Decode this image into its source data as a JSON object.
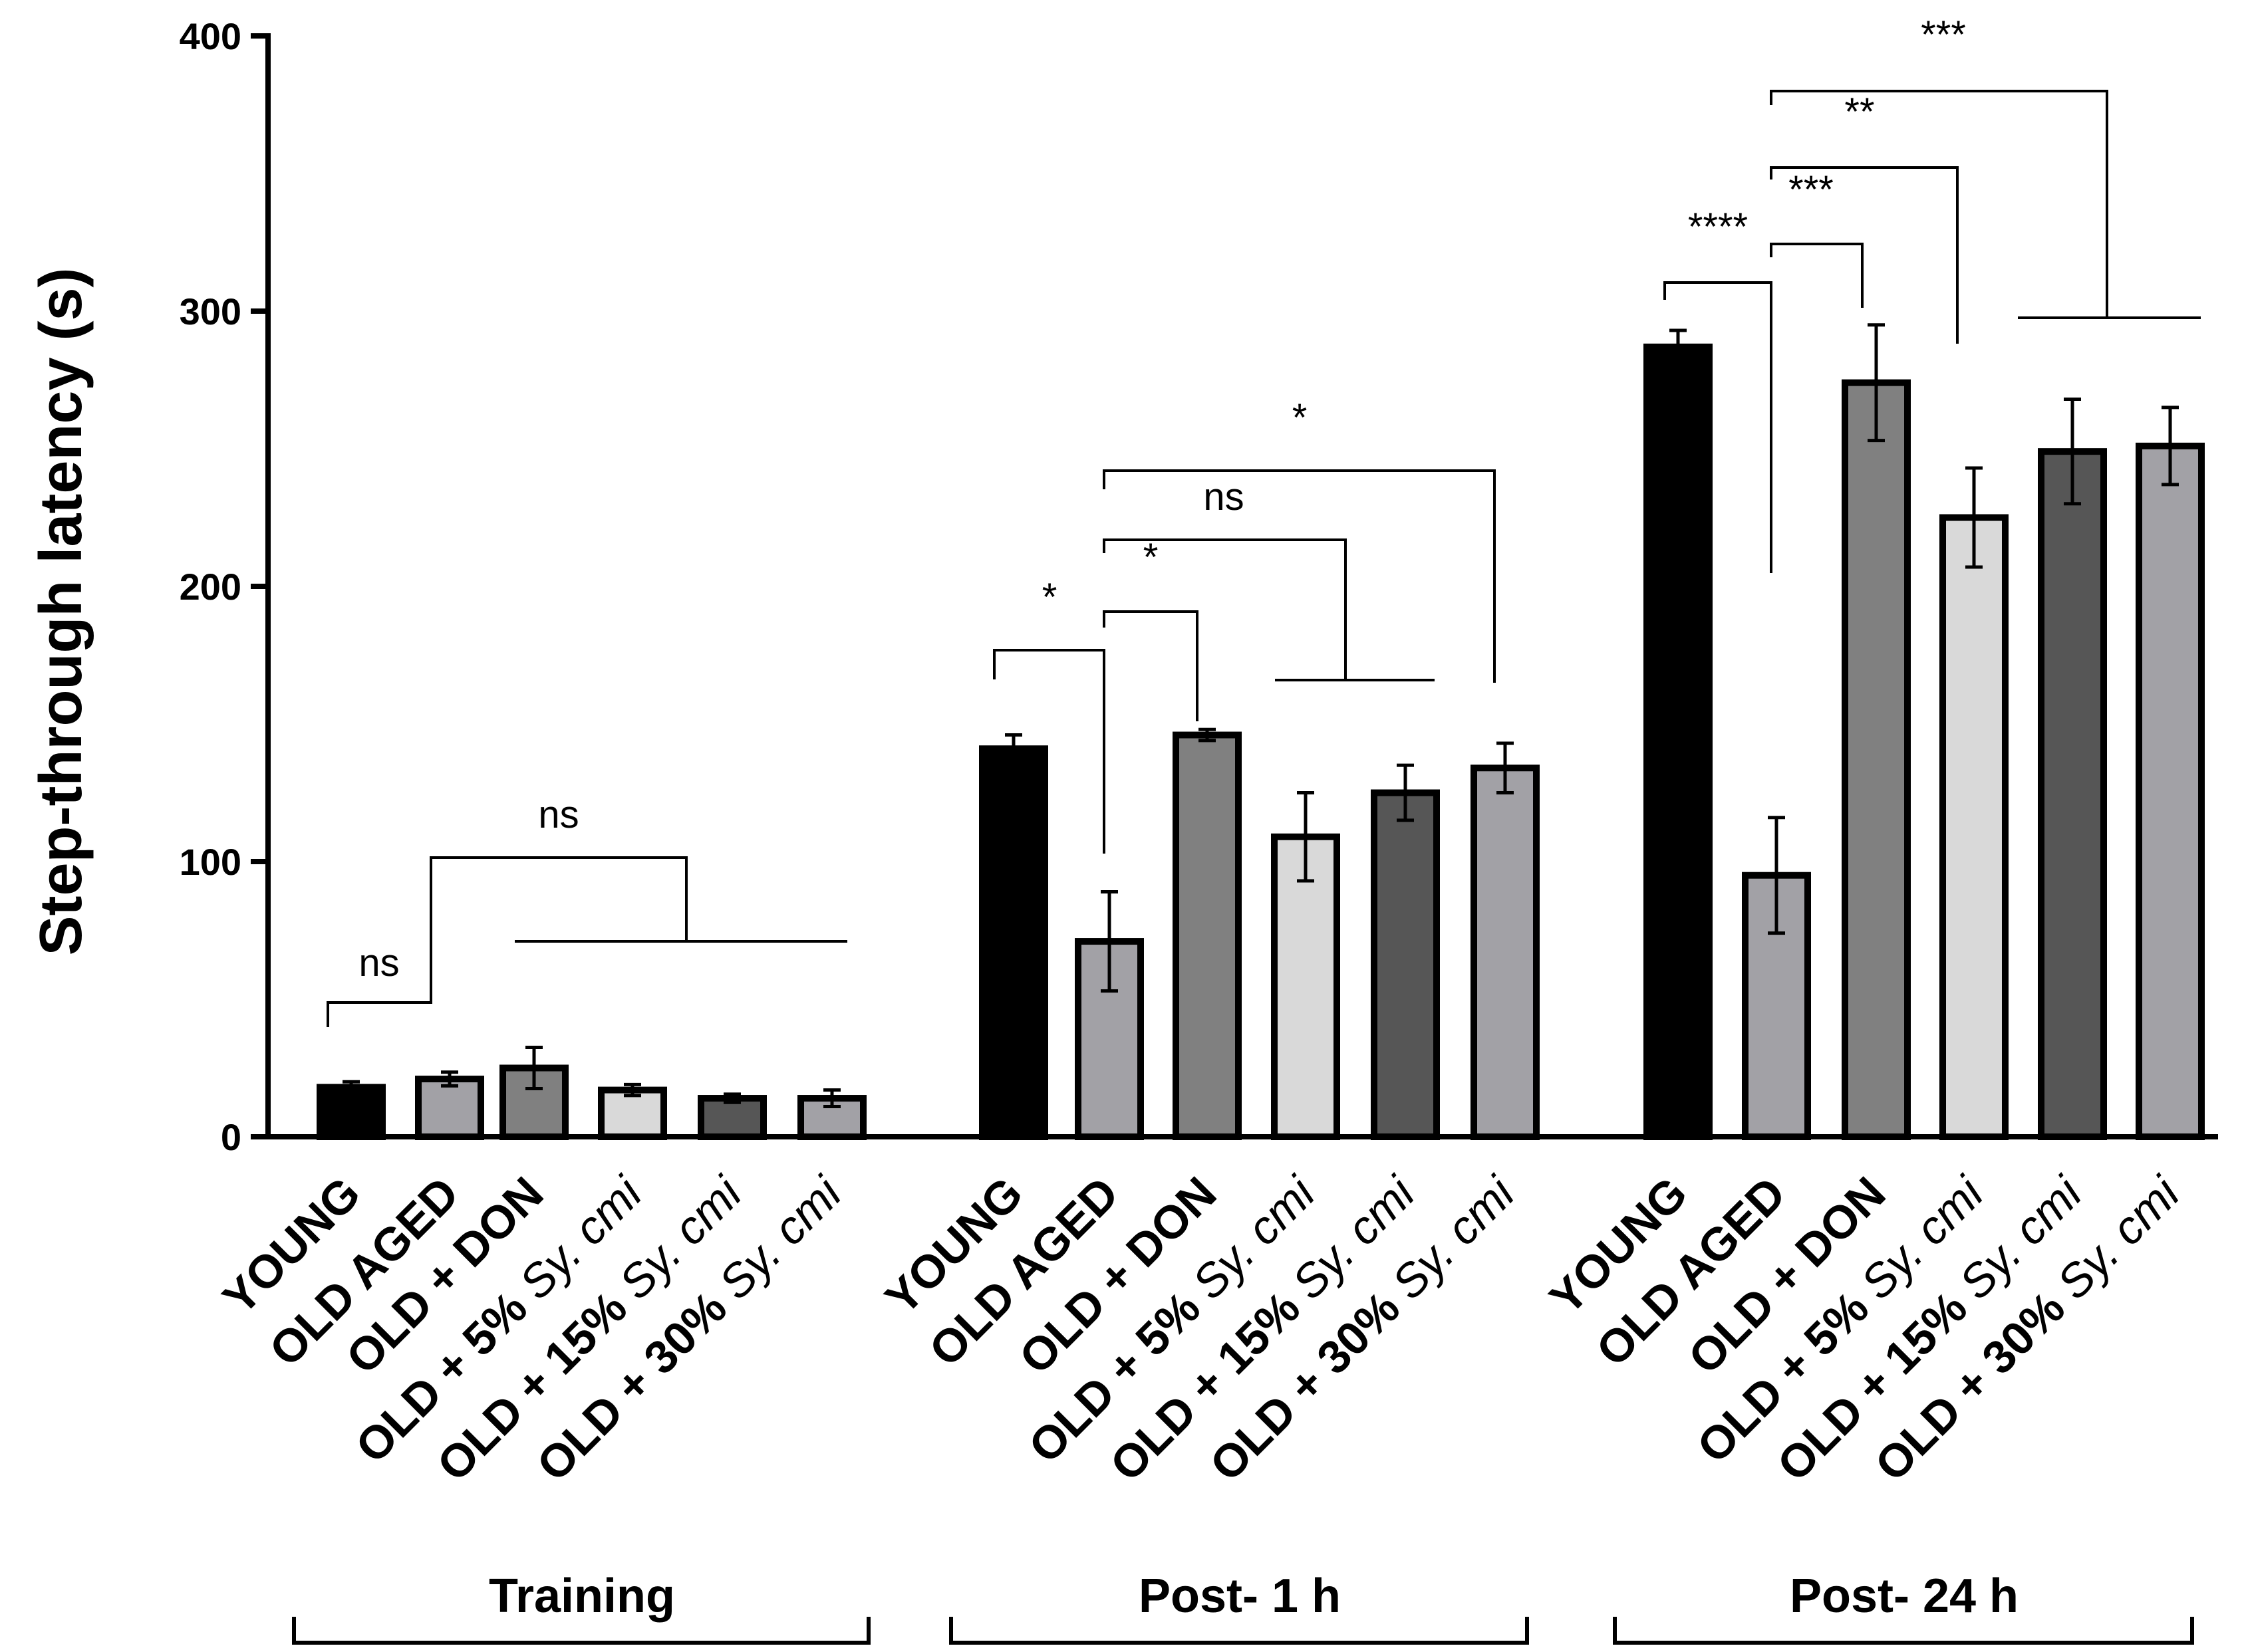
{
  "chart_data": {
    "type": "bar",
    "title": "",
    "ylabel": "Step-through latency (s)",
    "xlabel": "",
    "ylim": [
      0,
      400
    ],
    "yticks": [
      0,
      100,
      200,
      300,
      400
    ],
    "groups": [
      {
        "name": "Training",
        "bars": [
          {
            "label": "YOUNG",
            "value": 18,
            "err": 2,
            "color": "#000000"
          },
          {
            "label": "OLD AGED",
            "value": 21,
            "err": 2.5,
            "color": "#a2a1a6"
          },
          {
            "label": "OLD + DON",
            "value": 25,
            "err": 7.5,
            "color": "#808080"
          },
          {
            "label": "OLD + 5% Sy. cmi",
            "value": 17,
            "err": 2,
            "color": "#d9d9d9"
          },
          {
            "label": "OLD + 15% Sy. cmi",
            "value": 14,
            "err": 1.5,
            "color": "#565656"
          },
          {
            "label": "OLD + 30% Sy. cmi",
            "value": 14,
            "err": 3,
            "color": "#a2a1a6"
          }
        ],
        "significance": [
          {
            "text": "ns"
          },
          {
            "text": "ns"
          }
        ]
      },
      {
        "name": "Post- 1 h",
        "bars": [
          {
            "label": "YOUNG",
            "value": 141,
            "err": 5,
            "color": "#000000"
          },
          {
            "label": "OLD AGED",
            "value": 71,
            "err": 18,
            "color": "#a2a1a6"
          },
          {
            "label": "OLD + DON",
            "value": 146,
            "err": 2,
            "color": "#808080"
          },
          {
            "label": "OLD + 5% Sy. cmi",
            "value": 109,
            "err": 16,
            "color": "#d9d9d9"
          },
          {
            "label": "OLD + 15% Sy. cmi",
            "value": 125,
            "err": 10,
            "color": "#565656"
          },
          {
            "label": "OLD + 30% Sy. cmi",
            "value": 134,
            "err": 9,
            "color": "#a2a1a6"
          }
        ],
        "significance": [
          {
            "text": "*"
          },
          {
            "text": "*"
          },
          {
            "text": "ns"
          },
          {
            "text": "*"
          }
        ]
      },
      {
        "name": "Post- 24 h",
        "bars": [
          {
            "label": "YOUNG",
            "value": 287,
            "err": 6,
            "color": "#000000"
          },
          {
            "label": "OLD AGED",
            "value": 95,
            "err": 21,
            "color": "#a2a1a6"
          },
          {
            "label": "OLD + DON",
            "value": 274,
            "err": 21,
            "color": "#808080"
          },
          {
            "label": "OLD + 5% Sy. cmi",
            "value": 225,
            "err": 18,
            "color": "#d9d9d9"
          },
          {
            "label": "OLD + 15% Sy. cmi",
            "value": 249,
            "err": 19,
            "color": "#565656"
          },
          {
            "label": "OLD + 30% Sy. cmi",
            "value": 251,
            "err": 14,
            "color": "#a2a1a6"
          }
        ],
        "significance": [
          {
            "text": "****"
          },
          {
            "text": "***"
          },
          {
            "text": "**"
          },
          {
            "text": "***"
          }
        ]
      }
    ]
  }
}
